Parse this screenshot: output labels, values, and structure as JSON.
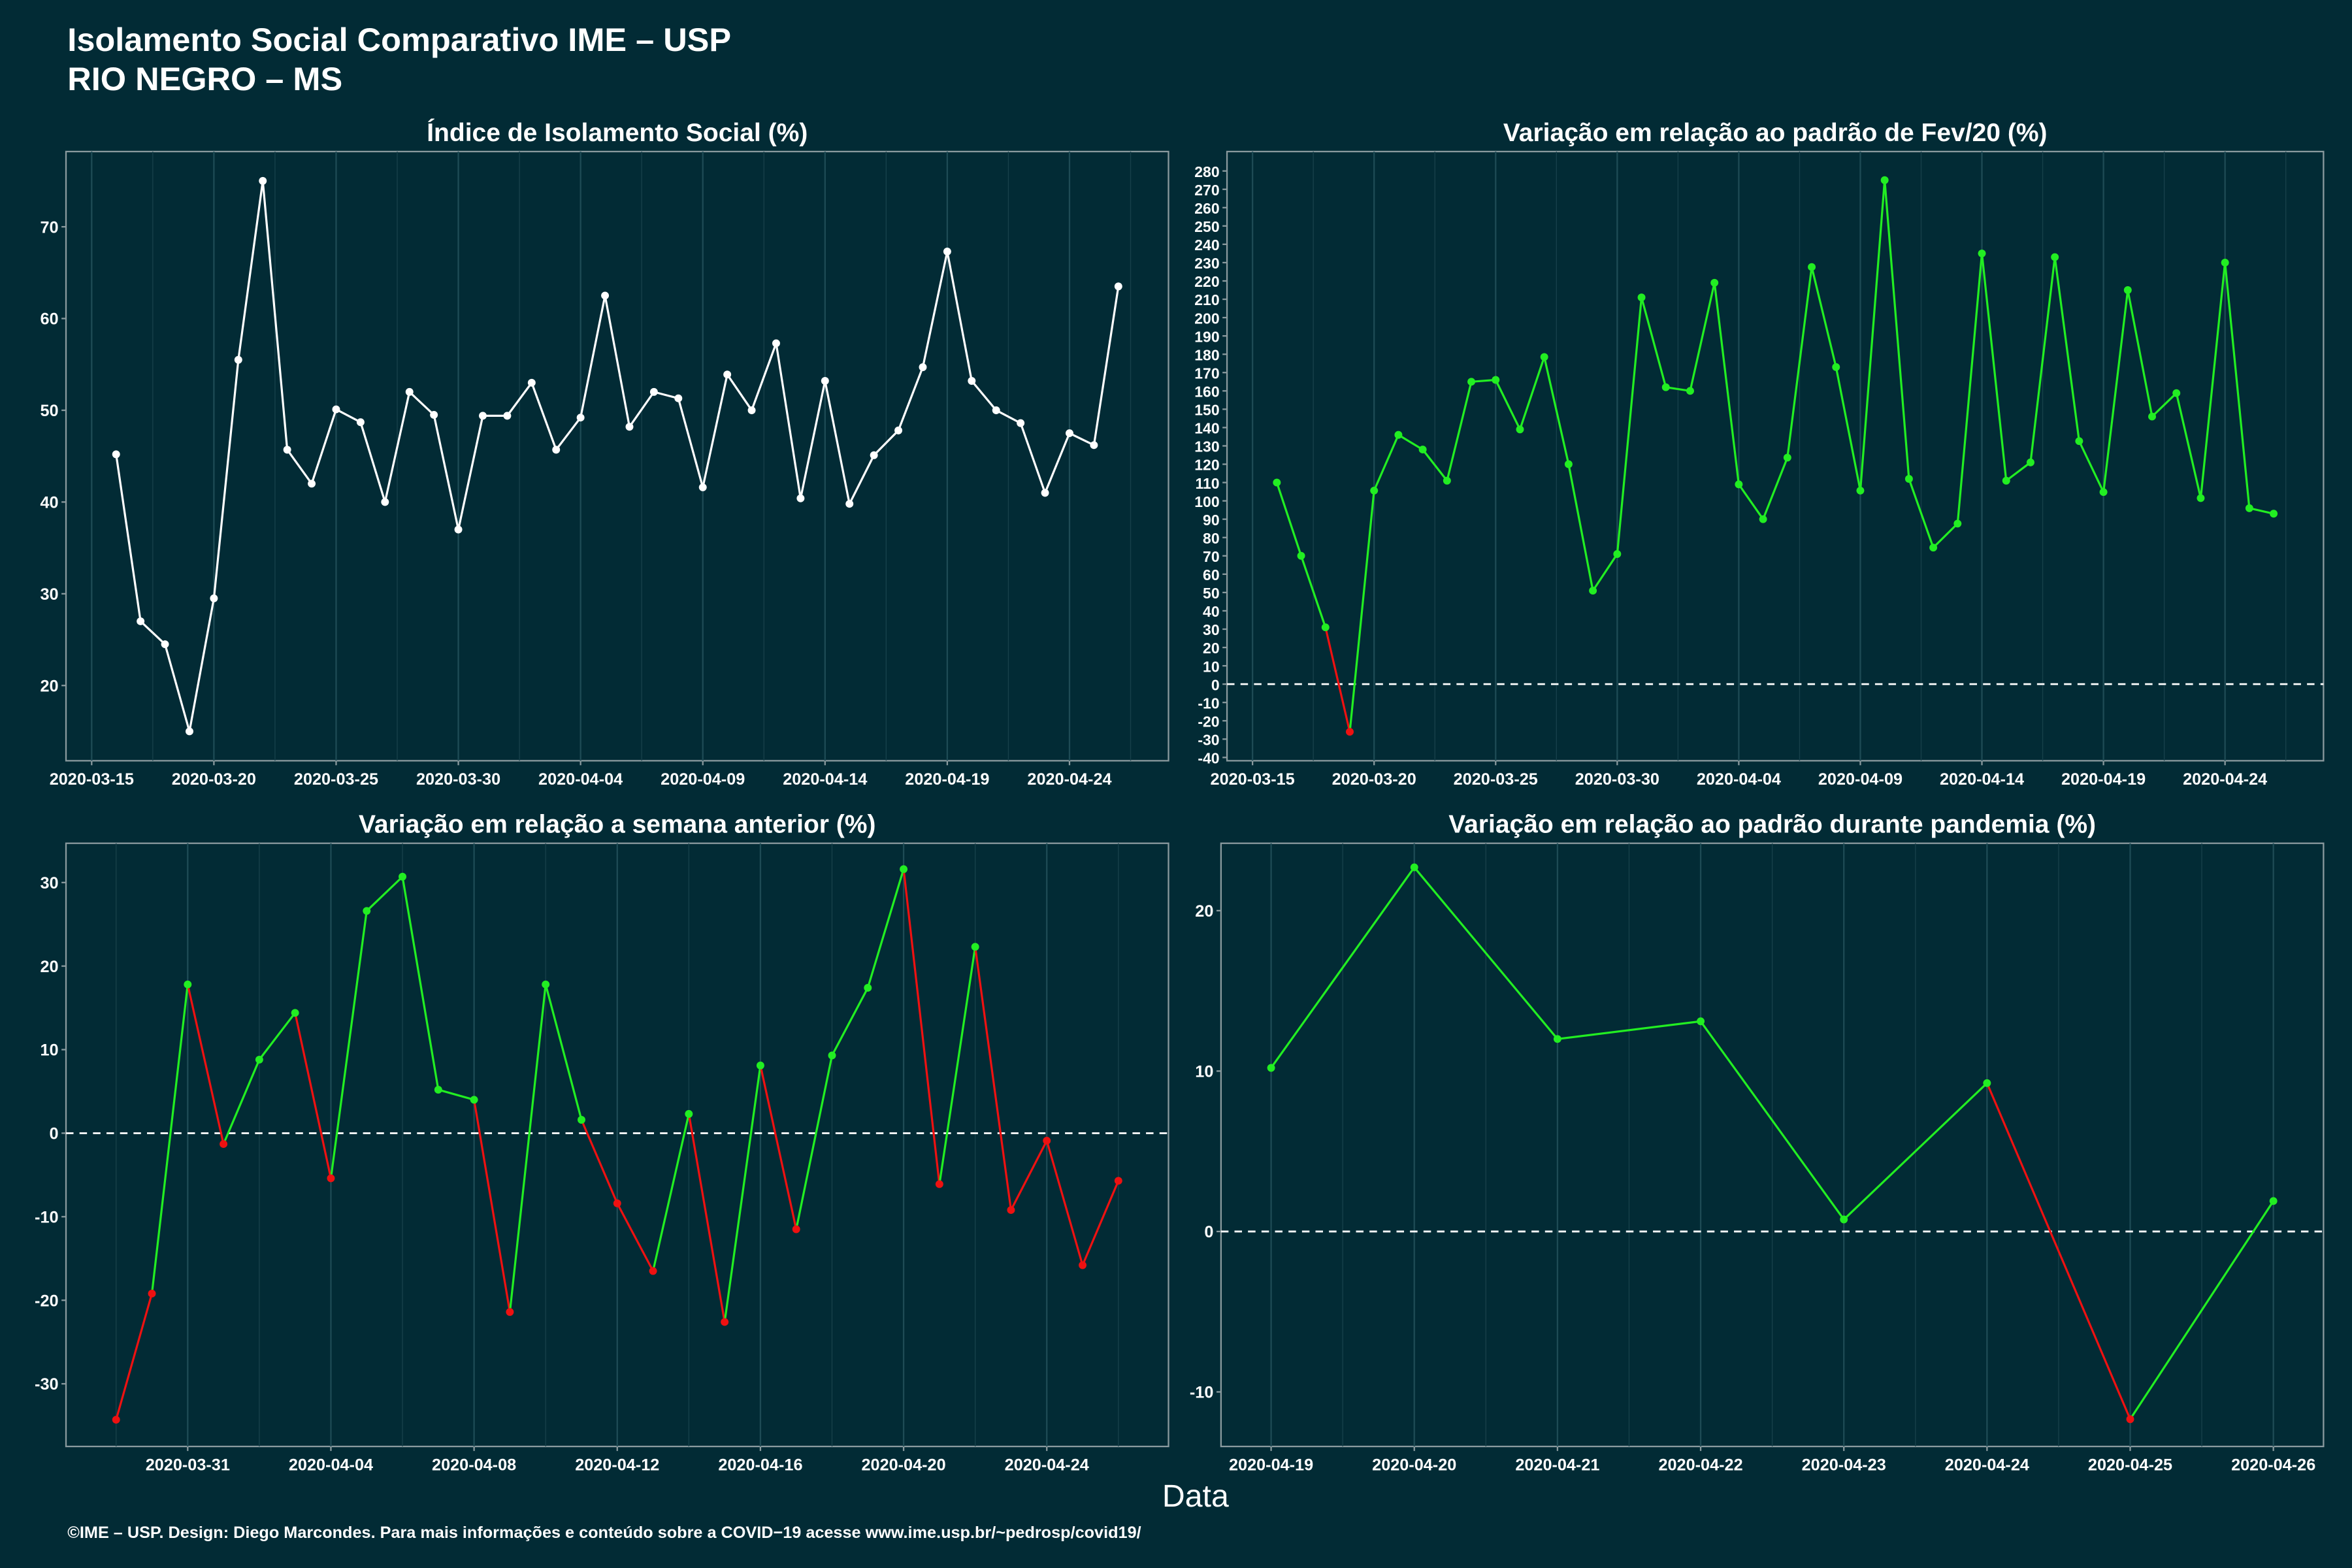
{
  "header": {
    "title": "Isolamento Social Comparativo IME – USP",
    "subtitle": "RIO NEGRO – MS"
  },
  "x_label": "Data",
  "footer": "©IME – USP. Design: Diego Marcondes. Para mais informações e conteúdo sobre a COVID−19 acesse www.ime.usp.br/~pedrosp/covid19/",
  "chart_data": [
    {
      "type": "line",
      "title": "Índice de Isolamento Social (%)",
      "color": "#ffffff",
      "grid": "x",
      "x": [
        "2020-03-16",
        "2020-03-17",
        "2020-03-18",
        "2020-03-19",
        "2020-03-20",
        "2020-03-21",
        "2020-03-22",
        "2020-03-23",
        "2020-03-24",
        "2020-03-25",
        "2020-03-26",
        "2020-03-27",
        "2020-03-28",
        "2020-03-29",
        "2020-03-30",
        "2020-03-31",
        "2020-04-01",
        "2020-04-02",
        "2020-04-03",
        "2020-04-04",
        "2020-04-05",
        "2020-04-06",
        "2020-04-07",
        "2020-04-08",
        "2020-04-09",
        "2020-04-10",
        "2020-04-11",
        "2020-04-12",
        "2020-04-13",
        "2020-04-14",
        "2020-04-15",
        "2020-04-16",
        "2020-04-17",
        "2020-04-18",
        "2020-04-19",
        "2020-04-20",
        "2020-04-21",
        "2020-04-22",
        "2020-04-23",
        "2020-04-24",
        "2020-04-25",
        "2020-04-26"
      ],
      "values": [
        45.2,
        27,
        24.5,
        15,
        29.5,
        55.5,
        75,
        45.7,
        42,
        50.1,
        48.7,
        40,
        52,
        49.5,
        37,
        49.4,
        49.4,
        53,
        45.7,
        49.2,
        62.5,
        48.2,
        52,
        51.3,
        41.6,
        53.9,
        50,
        57.3,
        40.4,
        53.2,
        39.8,
        45.1,
        47.8,
        54.7,
        67.3,
        53.2,
        50,
        48.6,
        41,
        47.5,
        46.2,
        63.5
      ],
      "xticks": [
        "2020-03-15",
        "2020-03-20",
        "2020-03-25",
        "2020-03-30",
        "2020-04-04",
        "2020-04-09",
        "2020-04-14",
        "2020-04-19",
        "2020-04-24"
      ],
      "ylim": [
        11.8,
        78.2
      ],
      "yticks": [
        20,
        30,
        40,
        50,
        60,
        70
      ]
    },
    {
      "type": "line",
      "title": "Variação em relação ao padrão de Fev/20 (%)",
      "positive_color": "#22ee22",
      "negative_color": "#ee1111",
      "hline": 0,
      "grid": "x",
      "x": [
        "2020-03-16",
        "2020-03-17",
        "2020-03-18",
        "2020-03-19",
        "2020-03-20",
        "2020-03-21",
        "2020-03-22",
        "2020-03-23",
        "2020-03-24",
        "2020-03-25",
        "2020-03-26",
        "2020-03-27",
        "2020-03-28",
        "2020-03-29",
        "2020-03-30",
        "2020-03-31",
        "2020-04-01",
        "2020-04-02",
        "2020-04-03",
        "2020-04-04",
        "2020-04-05",
        "2020-04-06",
        "2020-04-07",
        "2020-04-08",
        "2020-04-09",
        "2020-04-10",
        "2020-04-11",
        "2020-04-12",
        "2020-04-13",
        "2020-04-14",
        "2020-04-15",
        "2020-04-16",
        "2020-04-17",
        "2020-04-18",
        "2020-04-19",
        "2020-04-20",
        "2020-04-21",
        "2020-04-22",
        "2020-04-23",
        "2020-04-24",
        "2020-04-25",
        "2020-04-26"
      ],
      "values": [
        110,
        70,
        31,
        -26,
        105.6,
        136,
        128,
        111,
        165,
        166,
        139,
        178.5,
        120,
        51,
        71,
        211,
        162,
        160,
        219,
        109,
        90,
        123.6,
        227.6,
        173,
        105.6,
        275,
        112,
        74.5,
        87.6,
        235,
        111,
        121,
        233,
        132.6,
        104.8,
        215,
        146,
        158.8,
        101.5,
        230,
        96,
        93
      ],
      "xticks": [
        "2020-03-15",
        "2020-03-20",
        "2020-03-25",
        "2020-03-30",
        "2020-04-04",
        "2020-04-09",
        "2020-04-14",
        "2020-04-19",
        "2020-04-24"
      ],
      "ylim": [
        -41.8,
        290.6
      ],
      "yticks": [
        -40,
        -30,
        -20,
        -10,
        0,
        10,
        20,
        30,
        40,
        50,
        60,
        70,
        80,
        90,
        100,
        110,
        120,
        130,
        140,
        150,
        160,
        170,
        180,
        190,
        200,
        210,
        220,
        230,
        240,
        250,
        260,
        270,
        280
      ]
    },
    {
      "type": "line",
      "title": "Variação em relação a semana anterior (%)",
      "positive_color": "#22ee22",
      "negative_color": "#ee1111",
      "hline": 0,
      "grid": "x",
      "x": [
        "2020-03-29",
        "2020-03-30",
        "2020-03-31",
        "2020-04-01",
        "2020-04-02",
        "2020-04-03",
        "2020-04-04",
        "2020-04-05",
        "2020-04-06",
        "2020-04-07",
        "2020-04-08",
        "2020-04-09",
        "2020-04-10",
        "2020-04-11",
        "2020-04-12",
        "2020-04-13",
        "2020-04-14",
        "2020-04-15",
        "2020-04-16",
        "2020-04-17",
        "2020-04-18",
        "2020-04-19",
        "2020-04-20",
        "2020-04-21",
        "2020-04-22",
        "2020-04-23",
        "2020-04-24",
        "2020-04-25",
        "2020-04-26"
      ],
      "values": [
        -34.3,
        -19.2,
        17.8,
        -1.3,
        8.8,
        14.4,
        -5.4,
        26.6,
        30.7,
        5.2,
        4,
        -21.4,
        17.8,
        1.6,
        -8.4,
        -16.5,
        2.3,
        -22.6,
        8.1,
        -11.5,
        9.3,
        17.4,
        31.6,
        -6.1,
        22.3,
        -9.2,
        -0.9,
        -15.8,
        -5.7
      ],
      "xticks": [
        "2020-03-31",
        "2020-04-04",
        "2020-04-08",
        "2020-04-12",
        "2020-04-16",
        "2020-04-20",
        "2020-04-24"
      ],
      "ylim": [
        -37.5,
        34.7
      ],
      "yticks": [
        -30,
        -20,
        -10,
        0,
        10,
        20,
        30
      ]
    },
    {
      "type": "line",
      "title": "Variação em relação ao padrão durante pandemia (%)",
      "positive_color": "#22ee22",
      "negative_color": "#ee1111",
      "hline": 0,
      "grid": "x",
      "x": [
        "2020-04-19",
        "2020-04-20",
        "2020-04-21",
        "2020-04-22",
        "2020-04-23",
        "2020-04-24",
        "2020-04-25",
        "2020-04-26"
      ],
      "values": [
        10.2,
        22.7,
        12,
        13.1,
        0.75,
        9.25,
        -11.7,
        1.9
      ],
      "xticks": [
        "2020-04-19",
        "2020-04-20",
        "2020-04-21",
        "2020-04-22",
        "2020-04-23",
        "2020-04-24",
        "2020-04-25",
        "2020-04-26"
      ],
      "ylim": [
        -13.4,
        24.2
      ],
      "yticks": [
        -10,
        0,
        10,
        20
      ]
    }
  ]
}
